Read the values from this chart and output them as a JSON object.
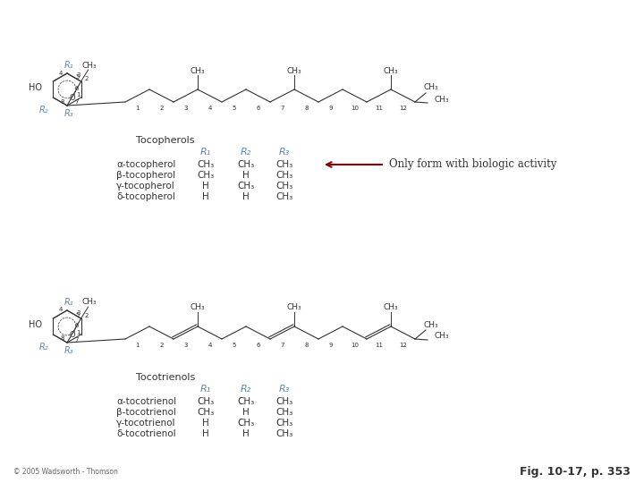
{
  "fig_label": "Fig. 10-17, p. 353",
  "annotation_text": "Only form with biologic activity",
  "arrow_color": "#8B0000",
  "blue_color": "#5588BB",
  "black_color": "#333333",
  "bg_color": "#FFFFFF",
  "copyright": "© 2005 Wadsworth - Thomson",
  "tocopherol_label": "Tocopherols",
  "tocopherol_cols": [
    "R₁",
    "R₂",
    "R₃"
  ],
  "tocopherol_rows": [
    [
      "α-tocopherol",
      "CH₃",
      "CH₃",
      "CH₃"
    ],
    [
      "β-tocopherol",
      "CH₃",
      "H",
      "CH₃"
    ],
    [
      "γ-tocopherol",
      "H",
      "CH₃",
      "CH₃"
    ],
    [
      "δ-tocopherol",
      "H",
      "H",
      "CH₃"
    ]
  ],
  "tocotrienol_label": "Tocotrienols",
  "tocotrienol_cols": [
    "R₁",
    "R₂",
    "R₃"
  ],
  "tocotrienol_rows": [
    [
      "α-tocotrienol",
      "CH₃",
      "CH₃",
      "CH₃"
    ],
    [
      "β-tocotrienol",
      "CH₃",
      "H",
      "CH₃"
    ],
    [
      "γ-tocotrienol",
      "H",
      "CH₃",
      "CH₃"
    ],
    [
      "δ-tocotrienol",
      "H",
      "H",
      "CH₃"
    ]
  ]
}
